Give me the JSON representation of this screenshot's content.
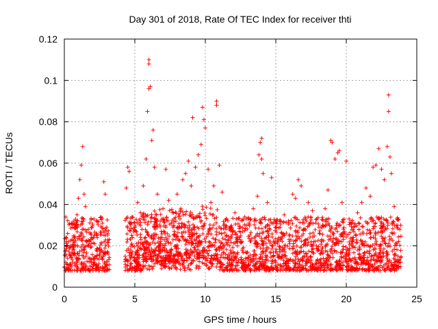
{
  "chart_data": {
    "type": "scatter",
    "title": "Day 301 of 2018, Rate Of TEC Index for receiver thti",
    "xlabel": "GPS time / hours",
    "ylabel": "ROTI / TECUs",
    "xlim": [
      0,
      25
    ],
    "ylim": [
      0,
      0.12
    ],
    "x_ticks": [
      "0",
      "5",
      "10",
      "15",
      "20",
      "25"
    ],
    "y_ticks": [
      "0",
      "0.02",
      "0.04",
      "0.06",
      "0.08",
      "0.1",
      "0.12"
    ],
    "x_tick_values": [
      0,
      5,
      10,
      15,
      20,
      25
    ],
    "y_tick_values": [
      0,
      0.02,
      0.04,
      0.06,
      0.08,
      0.1,
      0.12
    ],
    "grid": true,
    "marker": "+",
    "color": "#ff0000",
    "data_gap_hours": [
      3.2,
      4.3
    ],
    "series": [
      {
        "name": "ROTI",
        "points": [
          [
            0.1,
            0.012
          ],
          [
            0.3,
            0.022
          ],
          [
            0.5,
            0.031
          ],
          [
            0.7,
            0.018
          ],
          [
            0.9,
            0.035
          ],
          [
            1.0,
            0.043
          ],
          [
            1.1,
            0.052
          ],
          [
            1.2,
            0.059
          ],
          [
            1.3,
            0.068
          ],
          [
            1.4,
            0.045
          ],
          [
            1.5,
            0.039
          ],
          [
            1.7,
            0.028
          ],
          [
            1.9,
            0.021
          ],
          [
            2.1,
            0.033
          ],
          [
            2.3,
            0.026
          ],
          [
            2.5,
            0.019
          ],
          [
            2.7,
            0.031
          ],
          [
            2.8,
            0.051
          ],
          [
            2.9,
            0.045
          ],
          [
            3.0,
            0.029
          ],
          [
            3.1,
            0.016
          ],
          [
            4.4,
            0.048
          ],
          [
            4.5,
            0.058
          ],
          [
            4.6,
            0.056
          ],
          [
            4.8,
            0.034
          ],
          [
            5.0,
            0.029
          ],
          [
            5.2,
            0.041
          ],
          [
            5.4,
            0.036
          ],
          [
            5.6,
            0.049
          ],
          [
            5.8,
            0.062
          ],
          [
            5.9,
            0.085
          ],
          [
            6.0,
            0.096
          ],
          [
            6.0,
            0.11
          ],
          [
            6.0,
            0.108
          ],
          [
            6.1,
            0.097
          ],
          [
            6.2,
            0.071
          ],
          [
            6.3,
            0.076
          ],
          [
            6.4,
            0.058
          ],
          [
            6.6,
            0.045
          ],
          [
            6.8,
            0.032
          ],
          [
            7.0,
            0.038
          ],
          [
            7.2,
            0.057
          ],
          [
            7.4,
            0.042
          ],
          [
            7.6,
            0.031
          ],
          [
            7.8,
            0.027
          ],
          [
            8.0,
            0.045
          ],
          [
            8.2,
            0.033
          ],
          [
            8.4,
            0.052
          ],
          [
            8.6,
            0.055
          ],
          [
            8.8,
            0.061
          ],
          [
            9.0,
            0.049
          ],
          [
            9.1,
            0.082
          ],
          [
            9.3,
            0.058
          ],
          [
            9.5,
            0.064
          ],
          [
            9.7,
            0.069
          ],
          [
            9.8,
            0.087
          ],
          [
            9.9,
            0.081
          ],
          [
            10.0,
            0.077
          ],
          [
            10.2,
            0.057
          ],
          [
            10.4,
            0.041
          ],
          [
            10.6,
            0.049
          ],
          [
            10.8,
            0.09
          ],
          [
            10.8,
            0.088
          ],
          [
            11.0,
            0.059
          ],
          [
            11.2,
            0.046
          ],
          [
            11.5,
            0.033
          ],
          [
            11.8,
            0.029
          ],
          [
            12.1,
            0.036
          ],
          [
            12.4,
            0.027
          ],
          [
            12.8,
            0.034
          ],
          [
            13.1,
            0.031
          ],
          [
            13.4,
            0.038
          ],
          [
            13.7,
            0.044
          ],
          [
            13.8,
            0.064
          ],
          [
            13.9,
            0.07
          ],
          [
            14.0,
            0.072
          ],
          [
            14.0,
            0.062
          ],
          [
            14.1,
            0.055
          ],
          [
            14.4,
            0.041
          ],
          [
            14.7,
            0.053
          ],
          [
            15.0,
            0.029
          ],
          [
            15.3,
            0.024
          ],
          [
            15.6,
            0.035
          ],
          [
            15.9,
            0.032
          ],
          [
            16.2,
            0.045
          ],
          [
            16.4,
            0.043
          ],
          [
            16.6,
            0.052
          ],
          [
            16.8,
            0.049
          ],
          [
            17.0,
            0.031
          ],
          [
            17.3,
            0.041
          ],
          [
            17.6,
            0.037
          ],
          [
            17.9,
            0.033
          ],
          [
            18.2,
            0.029
          ],
          [
            18.5,
            0.038
          ],
          [
            18.7,
            0.047
          ],
          [
            18.9,
            0.071
          ],
          [
            19.0,
            0.07
          ],
          [
            19.2,
            0.062
          ],
          [
            19.4,
            0.065
          ],
          [
            19.5,
            0.066
          ],
          [
            19.7,
            0.041
          ],
          [
            20.0,
            0.061
          ],
          [
            20.2,
            0.033
          ],
          [
            20.5,
            0.029
          ],
          [
            20.8,
            0.036
          ],
          [
            21.1,
            0.041
          ],
          [
            21.4,
            0.048
          ],
          [
            21.7,
            0.044
          ],
          [
            21.9,
            0.058
          ],
          [
            22.1,
            0.059
          ],
          [
            22.3,
            0.067
          ],
          [
            22.5,
            0.057
          ],
          [
            22.7,
            0.052
          ],
          [
            22.9,
            0.068
          ],
          [
            23.0,
            0.085
          ],
          [
            23.0,
            0.093
          ],
          [
            23.1,
            0.063
          ],
          [
            23.2,
            0.055
          ],
          [
            23.4,
            0.039
          ],
          [
            23.6,
            0.033
          ],
          [
            23.8,
            0.028
          ]
        ]
      }
    ]
  }
}
